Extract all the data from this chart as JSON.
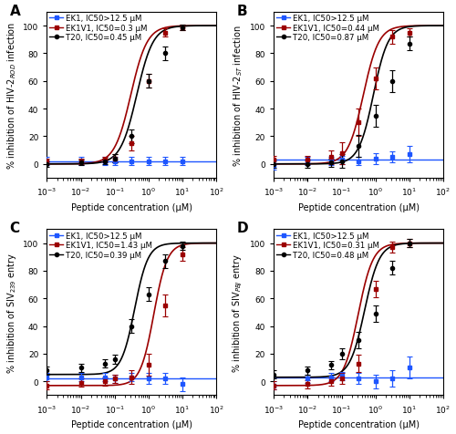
{
  "panels": [
    {
      "label": "A",
      "ylabel": "% inhibition of HIV-2$_{ROD}$ infection",
      "series": [
        {
          "name": "EK1, IC50>12.5 μM",
          "color": "#1E56FF",
          "ic50": null,
          "hill": null,
          "top": 2,
          "bottom": 2,
          "flat": true,
          "x_data": [
            -3,
            -2,
            -1.3,
            -1,
            -0.5,
            0,
            0.5,
            1
          ],
          "y_data": [
            2,
            2,
            2,
            2,
            2,
            2,
            2,
            2
          ],
          "y_err": [
            3,
            3,
            3,
            3,
            3,
            3,
            3,
            3
          ],
          "marker": "s"
        },
        {
          "name": "EK1V1, IC50=0.3 μM",
          "color": "#9B0000",
          "ic50": 0.3,
          "hill": 1.8,
          "top": 100,
          "bottom": 0,
          "flat": false,
          "x_data": [
            -3,
            -2,
            -1.3,
            -1,
            -0.5,
            0,
            0.5,
            1
          ],
          "y_data": [
            2,
            2,
            3,
            4,
            15,
            60,
            95,
            99
          ],
          "y_err": [
            2,
            2,
            2,
            3,
            5,
            5,
            3,
            2
          ],
          "marker": "s"
        },
        {
          "name": "T20, IC50=0.45 μM",
          "color": "#000000",
          "ic50": 0.45,
          "hill": 1.8,
          "top": 100,
          "bottom": 0,
          "flat": false,
          "x_data": [
            -3,
            -2,
            -1.3,
            -1,
            -0.5,
            0,
            0.5,
            1
          ],
          "y_data": [
            0,
            1,
            2,
            4,
            20,
            60,
            80,
            99
          ],
          "y_err": [
            2,
            2,
            2,
            3,
            5,
            5,
            5,
            2
          ],
          "marker": "o"
        }
      ]
    },
    {
      "label": "B",
      "ylabel": "% inhibition of HIV-2$_{ST}$ infection",
      "series": [
        {
          "name": "EK1, IC50>12.5 μM",
          "color": "#1E56FF",
          "ic50": null,
          "hill": null,
          "top": 3,
          "bottom": 3,
          "flat": true,
          "x_data": [
            -3,
            -2,
            -1.3,
            -1,
            -0.5,
            0,
            0.5,
            1
          ],
          "y_data": [
            -1,
            2,
            2,
            3,
            2,
            4,
            5,
            7
          ],
          "y_err": [
            3,
            3,
            3,
            3,
            3,
            4,
            4,
            6
          ],
          "marker": "s"
        },
        {
          "name": "EK1V1, IC50=0.44 μM",
          "color": "#9B0000",
          "ic50": 0.44,
          "hill": 1.9,
          "top": 100,
          "bottom": 0,
          "flat": false,
          "x_data": [
            -3,
            -2,
            -1.3,
            -1,
            -0.5,
            0,
            0.5,
            1
          ],
          "y_data": [
            3,
            3,
            5,
            8,
            30,
            62,
            92,
            95
          ],
          "y_err": [
            3,
            3,
            5,
            8,
            10,
            8,
            5,
            3
          ],
          "marker": "s"
        },
        {
          "name": "T20, IC50=0.87 μM",
          "color": "#000000",
          "ic50": 0.87,
          "hill": 2.0,
          "top": 100,
          "bottom": 0,
          "flat": false,
          "x_data": [
            -3,
            -2,
            -1.3,
            -1,
            -0.5,
            0,
            0.5,
            1
          ],
          "y_data": [
            0,
            0,
            1,
            2,
            13,
            35,
            60,
            87
          ],
          "y_err": [
            3,
            3,
            3,
            5,
            8,
            8,
            8,
            5
          ],
          "marker": "o"
        }
      ]
    },
    {
      "label": "C",
      "ylabel": "% inhibition of SIV$_{239}$ entry",
      "series": [
        {
          "name": "EK1, IC50>12.5 μM",
          "color": "#1E56FF",
          "ic50": null,
          "hill": null,
          "top": 2,
          "bottom": 2,
          "flat": true,
          "x_data": [
            -3,
            -2,
            -1.3,
            -1,
            -0.5,
            0,
            0.5,
            1
          ],
          "y_data": [
            3,
            3,
            3,
            2,
            3,
            2,
            2,
            -2
          ],
          "y_err": [
            3,
            3,
            3,
            3,
            3,
            4,
            4,
            5
          ],
          "marker": "s"
        },
        {
          "name": "EK1V1, IC50=1.43 μM",
          "color": "#9B0000",
          "ic50": 1.43,
          "hill": 2.2,
          "top": 100,
          "bottom": -3,
          "flat": false,
          "x_data": [
            -3,
            -2,
            -1.3,
            -1,
            -0.5,
            0,
            0.5,
            1
          ],
          "y_data": [
            -3,
            -1,
            0,
            2,
            3,
            12,
            55,
            92
          ],
          "y_err": [
            3,
            3,
            3,
            3,
            5,
            8,
            8,
            5
          ],
          "marker": "s"
        },
        {
          "name": "T20, IC50=0.39 μM",
          "color": "#000000",
          "ic50": 0.39,
          "hill": 2.2,
          "top": 100,
          "bottom": 5,
          "flat": false,
          "x_data": [
            -3,
            -2,
            -1.3,
            -1,
            -0.5,
            0,
            0.5,
            1
          ],
          "y_data": [
            8,
            10,
            13,
            16,
            40,
            63,
            87,
            98
          ],
          "y_err": [
            3,
            3,
            3,
            3,
            5,
            5,
            5,
            3
          ],
          "marker": "o"
        }
      ]
    },
    {
      "label": "D",
      "ylabel": "% inhibition of SIV$_{PBJ}$ entry",
      "series": [
        {
          "name": "EK1, IC50>12.5 μM",
          "color": "#1E56FF",
          "ic50": null,
          "hill": null,
          "top": 3,
          "bottom": 3,
          "flat": true,
          "x_data": [
            -3,
            -2,
            -1.3,
            -1,
            -0.5,
            0,
            0.5,
            1
          ],
          "y_data": [
            -3,
            2,
            3,
            4,
            2,
            0,
            2,
            10
          ],
          "y_err": [
            3,
            3,
            3,
            3,
            4,
            5,
            6,
            8
          ],
          "marker": "s"
        },
        {
          "name": "EK1V1, IC50=0.31 μM",
          "color": "#9B0000",
          "ic50": 0.31,
          "hill": 2.0,
          "top": 100,
          "bottom": -3,
          "flat": false,
          "x_data": [
            -3,
            -2,
            -1.3,
            -1,
            -0.5,
            0,
            0.5,
            1
          ],
          "y_data": [
            -3,
            -2,
            0,
            2,
            13,
            67,
            97,
            100
          ],
          "y_err": [
            3,
            3,
            3,
            4,
            6,
            6,
            4,
            3
          ],
          "marker": "s"
        },
        {
          "name": "T20, IC50=0.48 μM",
          "color": "#000000",
          "ic50": 0.48,
          "hill": 2.0,
          "top": 100,
          "bottom": 3,
          "flat": false,
          "x_data": [
            -3,
            -2,
            -1.3,
            -1,
            -0.5,
            0,
            0.5,
            1
          ],
          "y_data": [
            5,
            8,
            12,
            20,
            30,
            49,
            82,
            100
          ],
          "y_err": [
            3,
            3,
            3,
            4,
            6,
            6,
            5,
            3
          ],
          "marker": "o"
        }
      ]
    }
  ],
  "xlabel": "Peptide concentration (μM)",
  "xlim_log": [
    -3,
    2
  ],
  "ylim": [
    -10,
    110
  ],
  "yticks": [
    0,
    20,
    40,
    60,
    80,
    100
  ],
  "background_color": "#ffffff",
  "panel_label_fontsize": 11,
  "legend_fontsize": 6.2,
  "axis_label_fontsize": 7,
  "tick_fontsize": 6.5
}
